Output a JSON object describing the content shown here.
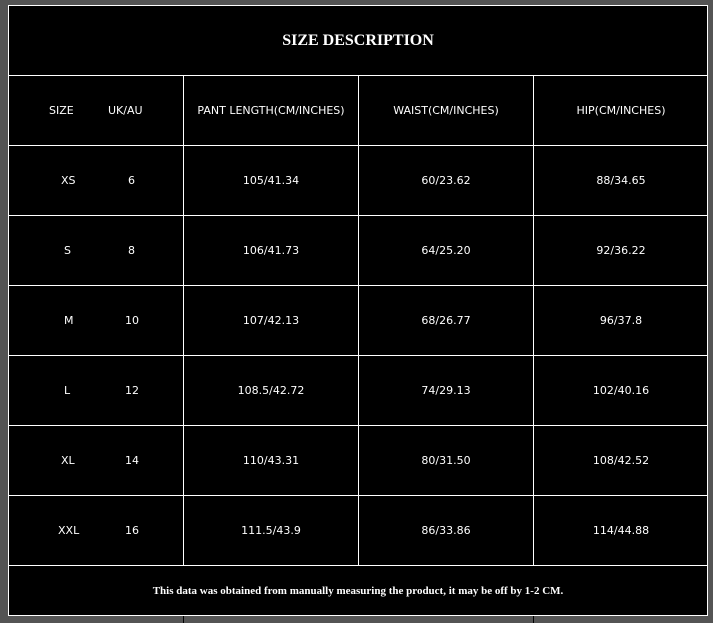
{
  "title": "SIZE DESCRIPTION",
  "headers": [
    "SIZE",
    "UK/AU",
    "PANT LENGTH(CM/INCHES)",
    "WAIST(CM/INCHES)",
    "HIP(CM/INCHES)"
  ],
  "rows": [
    [
      "XS",
      "6",
      "105/41.34",
      "60/23.62",
      "88/34.65"
    ],
    [
      "S",
      "8",
      "106/41.73",
      "64/25.20",
      "92/36.22"
    ],
    [
      "M",
      "10",
      "107/42.13",
      "68/26.77",
      "96/37.8"
    ],
    [
      "L",
      "12",
      "108.5/42.72",
      "74/29.13",
      "102/40.16"
    ],
    [
      "XL",
      "14",
      "110/43.31",
      "80/31.50",
      "108/42.52"
    ],
    [
      "XXL",
      "16",
      "111.5/43.9",
      "86/33.86",
      "114/44.88"
    ]
  ],
  "footnote": "This data was obtained from manually measuring the product, it may be off by 1-2 CM."
}
